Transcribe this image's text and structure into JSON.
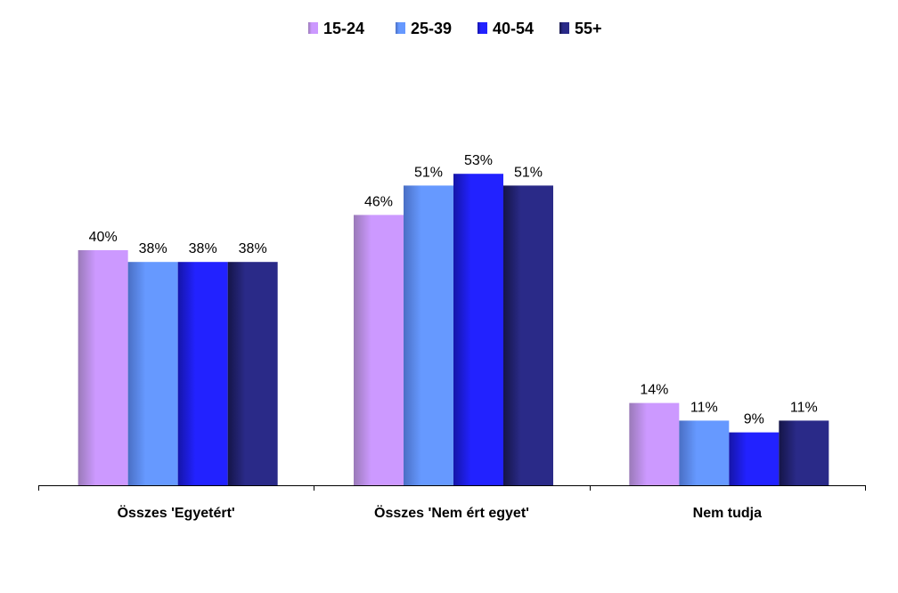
{
  "chart_data": {
    "type": "bar",
    "title": "",
    "xlabel": "",
    "ylabel": "",
    "ylim": [
      0,
      60
    ],
    "grid": false,
    "legend_position": "top-center",
    "value_suffix": "%",
    "categories": [
      "Összes 'Egyetért'",
      "Összes 'Nem ért egyet'",
      "Nem tudja"
    ],
    "series": [
      {
        "name": "15-24",
        "values": [
          40,
          46,
          14
        ],
        "color": "#cc99ff",
        "shade": "#9a7ab8"
      },
      {
        "name": "25-39",
        "values": [
          38,
          51,
          11
        ],
        "color": "#6699ff",
        "shade": "#4a6fc4"
      },
      {
        "name": "40-54",
        "values": [
          38,
          53,
          9
        ],
        "color": "#2222ff",
        "shade": "#1515a8"
      },
      {
        "name": "55+",
        "values": [
          38,
          51,
          11
        ],
        "color": "#2a2a88",
        "shade": "#151548"
      }
    ]
  }
}
